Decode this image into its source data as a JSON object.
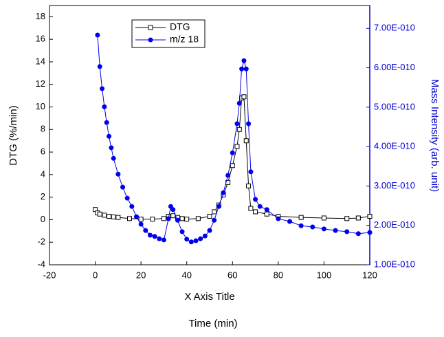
{
  "chart_data": {
    "type": "line",
    "x_title": "X Axis Title",
    "caption": "Time (min)",
    "y_title": "DTG (%/min)",
    "y2_title": "Mass Intensity (arb. unit)",
    "xlim": [
      -20,
      120
    ],
    "xticks": [
      -20,
      0,
      20,
      40,
      60,
      80,
      100,
      120
    ],
    "ylim": [
      -4,
      19
    ],
    "yticks": [
      -4,
      -2,
      0,
      2,
      4,
      6,
      8,
      10,
      12,
      14,
      16,
      18
    ],
    "y2lim": [
      1e-10,
      7.58e-10
    ],
    "y2ticks": [
      {
        "value": 1e-10,
        "label": "1.00E-010"
      },
      {
        "value": 2e-10,
        "label": "2.00E-010"
      },
      {
        "value": 3e-10,
        "label": "3.00E-010"
      },
      {
        "value": 4e-10,
        "label": "4.00E-010"
      },
      {
        "value": 5e-10,
        "label": "5.00E-010"
      },
      {
        "value": 6e-10,
        "label": "6.00E-010"
      },
      {
        "value": 7e-10,
        "label": "7.00E-010"
      }
    ],
    "y2_color": "#0000cc",
    "series": [
      {
        "name": "DTG",
        "color": "#000000",
        "marker": "square",
        "x": [
          0,
          1,
          2,
          4,
          6,
          8,
          10,
          15,
          20,
          25,
          30,
          32,
          34,
          36,
          38,
          40,
          45,
          50,
          52,
          54,
          56,
          58,
          60,
          62,
          63,
          64,
          65,
          66,
          67,
          68,
          70,
          75,
          80,
          90,
          100,
          110,
          115,
          120
        ],
        "values": [
          0.9,
          0.6,
          0.5,
          0.4,
          0.3,
          0.25,
          0.2,
          0.1,
          0.05,
          0.05,
          0.1,
          0.3,
          0.35,
          0.2,
          0.1,
          0.05,
          0.1,
          0.3,
          0.7,
          1.3,
          2.2,
          3.3,
          4.8,
          6.5,
          8,
          10.8,
          10.9,
          7,
          3,
          1,
          0.7,
          0.5,
          0.3,
          0.2,
          0.15,
          0.1,
          0.15,
          0.3
        ]
      },
      {
        "name": "m/z 18",
        "color": "#0000ee",
        "marker": "circle",
        "axis": "y2",
        "x": [
          1,
          2,
          3,
          4,
          5,
          6,
          7,
          8,
          10,
          12,
          14,
          16,
          18,
          20,
          22,
          24,
          26,
          28,
          30,
          32,
          33,
          34,
          36,
          38,
          40,
          42,
          44,
          46,
          48,
          50,
          52,
          54,
          56,
          58,
          60,
          62,
          63,
          64,
          65,
          66,
          67,
          68,
          70,
          72,
          75,
          80,
          85,
          90,
          95,
          100,
          105,
          110,
          115,
          120
        ],
        "values": [
          6.83e-10,
          6.03e-10,
          5.47e-10,
          5.01e-10,
          4.61e-10,
          4.26e-10,
          3.97e-10,
          3.7e-10,
          3.3e-10,
          2.97e-10,
          2.69e-10,
          2.48e-10,
          2.22e-10,
          2.03e-10,
          1.87e-10,
          1.75e-10,
          1.72e-10,
          1.66e-10,
          1.63e-10,
          2.17e-10,
          2.48e-10,
          2.4e-10,
          2.13e-10,
          1.84e-10,
          1.65e-10,
          1.58e-10,
          1.61e-10,
          1.66e-10,
          1.73e-10,
          1.87e-10,
          2.13e-10,
          2.48e-10,
          2.83e-10,
          3.27e-10,
          3.84e-10,
          4.58e-10,
          5.1e-10,
          5.97e-10,
          6.18e-10,
          5.97e-10,
          4.58e-10,
          3.36e-10,
          2.66e-10,
          2.48e-10,
          2.4e-10,
          2.17e-10,
          2.1e-10,
          1.99e-10,
          1.96e-10,
          1.91e-10,
          1.87e-10,
          1.84e-10,
          1.79e-10,
          1.82e-10
        ]
      }
    ]
  }
}
